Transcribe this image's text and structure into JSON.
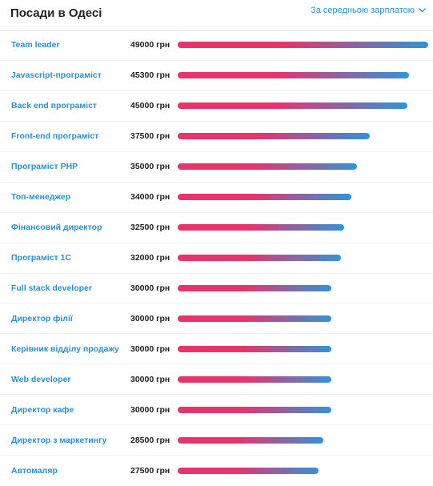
{
  "header": {
    "title": "Посади в Одесі",
    "sort_label": "За середньою зарплатою"
  },
  "colors": {
    "bar_start": "#e8336b",
    "bar_end": "#2f95d8",
    "link": "#2b8fd1"
  },
  "icons": {
    "sort_chevron": "chevron-down-icon"
  },
  "chart_data": {
    "type": "bar",
    "orientation": "horizontal",
    "value_suffix": "грн",
    "categories": [
      "Team leader",
      "Javascript-програміст",
      "Back end програміст",
      "Front-end програміст",
      "Програміст PHP",
      "Топ-менеджер",
      "Фінансовий директор",
      "Програміст 1С",
      "Full stack developer",
      "Директор філії",
      "Керівник відділу продажу",
      "Web developer",
      "Директор кафе",
      "Директор з маркетингу",
      "Автомаляр"
    ],
    "values": [
      49000,
      45300,
      45000,
      37500,
      35000,
      34000,
      32500,
      32000,
      30000,
      30000,
      30000,
      30000,
      30000,
      28500,
      27500
    ],
    "labels": [
      "49000 грн",
      "45300 грн",
      "45000 грн",
      "37500 грн",
      "35000 грн",
      "34000 грн",
      "32500 грн",
      "32000 грн",
      "30000 грн",
      "30000 грн",
      "30000 грн",
      "30000 грн",
      "30000 грн",
      "28500 грн",
      "27500 грн"
    ],
    "xlim": [
      0,
      49000
    ]
  }
}
